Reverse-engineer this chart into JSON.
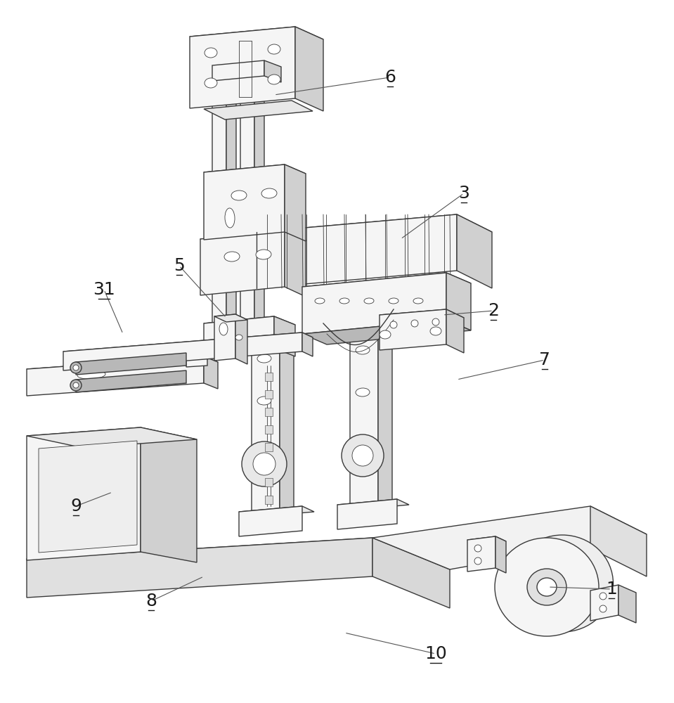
{
  "bg_color": "#ffffff",
  "lc": "#3a3a3a",
  "fc_light": "#f5f5f5",
  "fc_mid": "#e8e8e8",
  "fc_dark": "#d0d0d0",
  "fc_darker": "#b8b8b8",
  "label_color": "#1a1a1a",
  "label_fontsize": 18,
  "figsize": [
    9.59,
    10.0
  ],
  "dpi": 100,
  "lw": 1.0,
  "lw_thin": 0.6
}
